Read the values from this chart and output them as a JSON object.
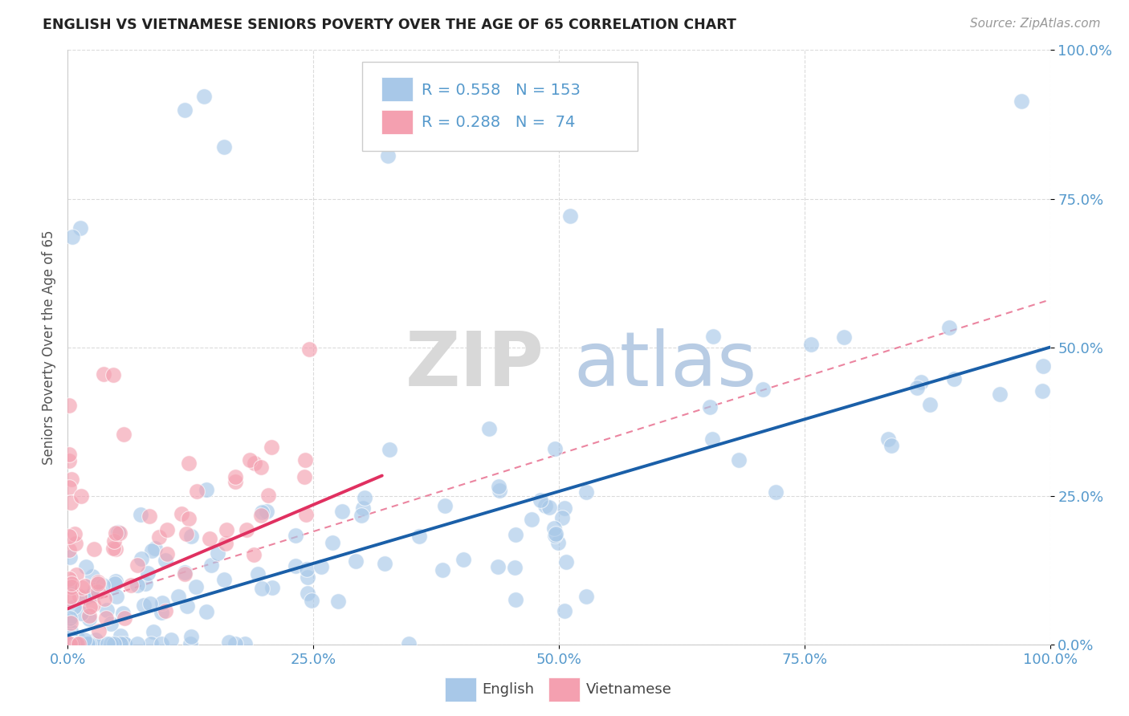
{
  "title": "ENGLISH VS VIETNAMESE SENIORS POVERTY OVER THE AGE OF 65 CORRELATION CHART",
  "source": "Source: ZipAtlas.com",
  "ylabel": "Seniors Poverty Over the Age of 65",
  "xlim": [
    0,
    1
  ],
  "ylim": [
    0,
    1
  ],
  "xtick_vals": [
    0,
    0.25,
    0.5,
    0.75,
    1.0
  ],
  "ytick_vals": [
    0,
    0.25,
    0.5,
    0.75,
    1.0
  ],
  "xticklabels": [
    "0.0%",
    "25.0%",
    "50.0%",
    "75.0%",
    "100.0%"
  ],
  "yticklabels": [
    "0.0%",
    "25.0%",
    "50.0%",
    "75.0%",
    "100.0%"
  ],
  "english_R": 0.558,
  "english_N": 153,
  "vietnamese_R": 0.288,
  "vietnamese_N": 74,
  "english_color": "#a8c8e8",
  "vietnamese_color": "#f4a0b0",
  "trend_english_color": "#1a5fa8",
  "trend_vietnamese_color": "#e03060",
  "trend_dashed_color": "#e87090",
  "tick_color": "#5599cc",
  "background_color": "#ffffff",
  "watermark_zip_color": "#d8d8d8",
  "watermark_atlas_color": "#b8cce4"
}
